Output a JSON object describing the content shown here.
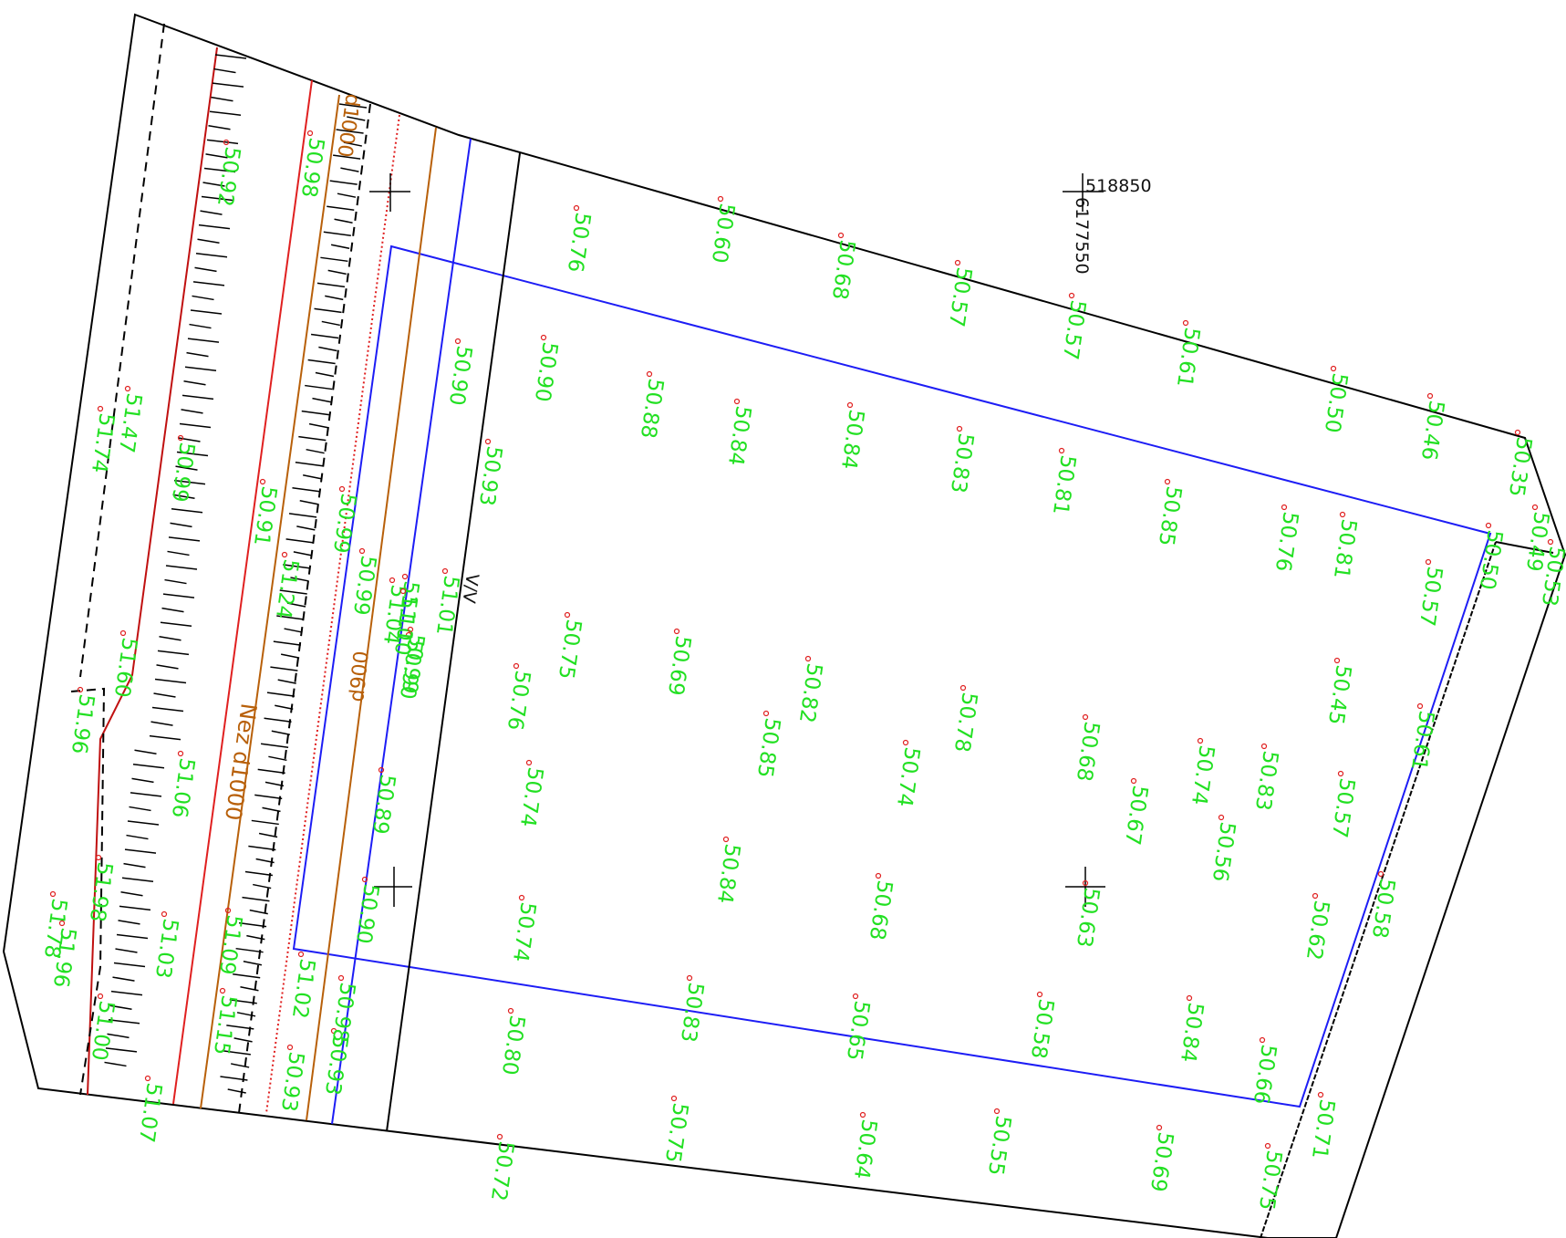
{
  "map": {
    "colors": {
      "parcel": "#000000",
      "building_outline": "#1d1df5",
      "elevation_text": "#22e022",
      "road_edge_red": "#e02020",
      "utility_brown": "#b8600a",
      "water_blue": "#1d1df5",
      "point_marker": "#e02020"
    },
    "grid_labels": {
      "easting": "518850",
      "northing": "6177550"
    },
    "pipe_labels": {
      "label_1000_top": "d1000",
      "label_900": "d900",
      "label_nez": "Nez d1000",
      "label_vv": "V/V"
    },
    "elevations": [
      {
        "value": "50.76"
      },
      {
        "value": "50.60"
      },
      {
        "value": "50.68"
      },
      {
        "value": "50.57"
      },
      {
        "value": "50.57"
      },
      {
        "value": "50.61"
      },
      {
        "value": "50.50"
      },
      {
        "value": "50.46"
      },
      {
        "value": "50.35"
      },
      {
        "value": "50.49"
      },
      {
        "value": "50.53"
      },
      {
        "value": "50.90"
      },
      {
        "value": "50.90"
      },
      {
        "value": "50.88"
      },
      {
        "value": "50.84"
      },
      {
        "value": "50.84"
      },
      {
        "value": "50.83"
      },
      {
        "value": "50.81"
      },
      {
        "value": "50.85"
      },
      {
        "value": "50.76"
      },
      {
        "value": "50.81"
      },
      {
        "value": "50.93"
      },
      {
        "value": "50.50"
      },
      {
        "value": "50.57"
      },
      {
        "value": "51.01"
      },
      {
        "value": "50.75"
      },
      {
        "value": "50.69"
      },
      {
        "value": "50.82"
      },
      {
        "value": "50.45"
      },
      {
        "value": "50.90"
      },
      {
        "value": "50.76"
      },
      {
        "value": "50.85"
      },
      {
        "value": "50.78"
      },
      {
        "value": "50.74"
      },
      {
        "value": "50.68"
      },
      {
        "value": "50.74"
      },
      {
        "value": "50.67"
      },
      {
        "value": "50.83"
      },
      {
        "value": "50.57"
      },
      {
        "value": "50.61"
      },
      {
        "value": "50.74"
      },
      {
        "value": "50.56"
      },
      {
        "value": "50.89"
      },
      {
        "value": "50.84"
      },
      {
        "value": "50.68"
      },
      {
        "value": "50.63"
      },
      {
        "value": "50.58"
      },
      {
        "value": "50.62"
      },
      {
        "value": "50.74"
      },
      {
        "value": "50.90"
      },
      {
        "value": "50.83"
      },
      {
        "value": "50.65"
      },
      {
        "value": "50.58"
      },
      {
        "value": "50.84"
      },
      {
        "value": "50.66"
      },
      {
        "value": "50.71"
      },
      {
        "value": "50.80"
      },
      {
        "value": "50.75"
      },
      {
        "value": "50.64"
      },
      {
        "value": "50.55"
      },
      {
        "value": "50.69"
      },
      {
        "value": "50.75"
      },
      {
        "value": "50.72"
      },
      {
        "value": "50.98"
      },
      {
        "value": "50.92"
      },
      {
        "value": "51.47"
      },
      {
        "value": "51.74"
      },
      {
        "value": "50.99"
      },
      {
        "value": "50.91"
      },
      {
        "value": "51.24"
      },
      {
        "value": "50.99"
      },
      {
        "value": "50.99"
      },
      {
        "value": "51.10"
      },
      {
        "value": "51.04"
      },
      {
        "value": "50.99"
      },
      {
        "value": "51.60"
      },
      {
        "value": "51.96"
      },
      {
        "value": "51.06"
      },
      {
        "value": "51.98"
      },
      {
        "value": "51.03"
      },
      {
        "value": "51.09"
      },
      {
        "value": "51.78"
      },
      {
        "value": "51.96"
      },
      {
        "value": "51.02"
      },
      {
        "value": "51.15"
      },
      {
        "value": "51.00"
      },
      {
        "value": "51.07"
      },
      {
        "value": "50.93"
      },
      {
        "value": "50.98"
      },
      {
        "value": "50.93"
      },
      {
        "value": "51.10"
      }
    ]
  }
}
